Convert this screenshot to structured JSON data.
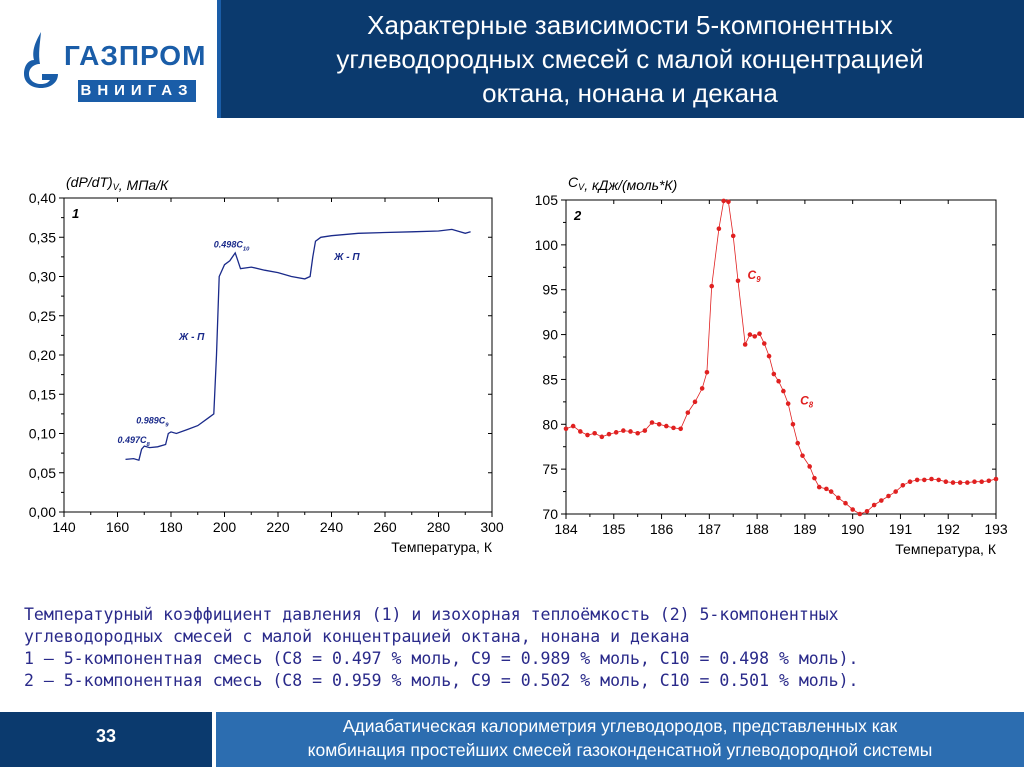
{
  "header": {
    "title_line1": "Характерные зависимости 5-компонентных",
    "title_line2": "углеводородных смесей с малой концентрацией",
    "title_line3": "октана, нонана и декана",
    "logo_main": "ГАЗПРОМ",
    "logo_sub": "ВНИИГАЗ",
    "colors": {
      "dark_blue": "#0b3a6e",
      "brand_blue": "#1a5da8"
    }
  },
  "chart_data": [
    {
      "type": "line",
      "panel_label": "1",
      "ylabel": "(dP/dT)V, МПа/К",
      "xlabel": "Температура, К",
      "xlim": [
        140,
        300
      ],
      "ylim": [
        0,
        0.4
      ],
      "xticks": [
        "140",
        "160",
        "180",
        "200",
        "220",
        "240",
        "260",
        "280",
        "300"
      ],
      "yticks": [
        "0,00",
        "0,05",
        "0,10",
        "0,15",
        "0,20",
        "0,25",
        "0,30",
        "0,35",
        "0,40"
      ],
      "annotations": [
        {
          "text": "0.497C8",
          "x": 160,
          "y": 0.088
        },
        {
          "text": "0.989C9",
          "x": 167,
          "y": 0.113
        },
        {
          "text": "0.498C10",
          "x": 196,
          "y": 0.337
        },
        {
          "text": "Ж - П",
          "x": 183,
          "y": 0.219
        },
        {
          "text": "Ж - П",
          "x": 241,
          "y": 0.321
        }
      ],
      "series": [
        {
          "color": "#1a2a8a",
          "x": [
            163,
            166,
            168,
            169,
            170,
            172,
            175,
            178,
            179,
            180,
            182,
            186,
            190,
            194,
            196,
            197,
            198,
            200,
            202,
            204,
            205,
            206,
            210,
            215,
            220,
            225,
            230,
            232,
            233,
            234,
            236,
            240,
            250,
            260,
            270,
            280,
            285,
            290,
            292
          ],
          "values": [
            0.067,
            0.068,
            0.066,
            0.08,
            0.084,
            0.082,
            0.083,
            0.086,
            0.1,
            0.102,
            0.1,
            0.105,
            0.11,
            0.12,
            0.125,
            0.2,
            0.3,
            0.315,
            0.32,
            0.33,
            0.32,
            0.31,
            0.312,
            0.308,
            0.305,
            0.3,
            0.297,
            0.3,
            0.325,
            0.345,
            0.35,
            0.352,
            0.355,
            0.356,
            0.357,
            0.358,
            0.36,
            0.355,
            0.357
          ]
        }
      ]
    },
    {
      "type": "line",
      "panel_label": "2",
      "ylabel": "CV, кДж/(моль*К)",
      "xlabel": "Температура, К",
      "xlim": [
        184,
        193
      ],
      "ylim": [
        70,
        105
      ],
      "xticks": [
        "184",
        "185",
        "186",
        "187",
        "188",
        "189",
        "190",
        "191",
        "192",
        "193"
      ],
      "yticks": [
        "70",
        "75",
        "80",
        "85",
        "90",
        "95",
        "100",
        "105"
      ],
      "annotations": [
        {
          "text": "C9",
          "x": 187.8,
          "y": 96.2
        },
        {
          "text": "C8",
          "x": 188.9,
          "y": 82.2
        }
      ],
      "series": [
        {
          "color": "#e02020",
          "x": [
            184.0,
            184.15,
            184.3,
            184.45,
            184.6,
            184.75,
            184.9,
            185.05,
            185.2,
            185.35,
            185.5,
            185.65,
            185.8,
            185.95,
            186.1,
            186.25,
            186.4,
            186.55,
            186.7,
            186.85,
            186.95,
            187.05,
            187.2,
            187.3,
            187.4,
            187.5,
            187.6,
            187.75,
            187.85,
            187.95,
            188.05,
            188.15,
            188.25,
            188.35,
            188.45,
            188.55,
            188.65,
            188.75,
            188.85,
            188.95,
            189.1,
            189.2,
            189.3,
            189.45,
            189.55,
            189.7,
            189.85,
            190.0,
            190.15,
            190.3,
            190.45,
            190.6,
            190.75,
            190.9,
            191.05,
            191.2,
            191.35,
            191.5,
            191.65,
            191.8,
            191.95,
            192.1,
            192.25,
            192.4,
            192.55,
            192.7,
            192.85,
            193.0
          ],
          "values": [
            79.5,
            79.8,
            79.2,
            78.8,
            79.0,
            78.6,
            78.9,
            79.1,
            79.3,
            79.2,
            79.0,
            79.3,
            80.2,
            80.0,
            79.8,
            79.6,
            79.5,
            81.3,
            82.5,
            84.0,
            85.8,
            95.4,
            101.8,
            104.9,
            104.8,
            101.0,
            96.0,
            88.9,
            90.0,
            89.8,
            90.1,
            89.0,
            87.6,
            85.6,
            84.8,
            83.7,
            82.3,
            80.0,
            77.9,
            76.5,
            75.3,
            74.0,
            73.0,
            72.8,
            72.5,
            71.8,
            71.2,
            70.5,
            70.0,
            70.3,
            71.0,
            71.5,
            72.0,
            72.5,
            73.2,
            73.6,
            73.8,
            73.8,
            73.9,
            73.8,
            73.6,
            73.5,
            73.5,
            73.5,
            73.6,
            73.6,
            73.7,
            73.9
          ]
        }
      ]
    }
  ],
  "caption": {
    "line1": "Температурный коэффициент давления (1) и изохорная теплоёмкость (2) 5-компонентных",
    "line2": "углеводородных смесей с малой концентрацией октана, нонана и декана",
    "line3": "1 – 5-компонентная смесь (C8 = 0.497 % моль, C9 = 0.989 % моль, C10 = 0.498 % моль).",
    "line4": "2 – 5-компонентная смесь (C8 = 0.959 % моль, C9 = 0.502 % моль, C10 = 0.501 % моль)."
  },
  "footer": {
    "page_number": "33",
    "line1": "Адиабатическая калориметрия углеводородов, представленных как",
    "line2": "комбинация простейших смесей газоконденсатной углеводородной системы"
  }
}
